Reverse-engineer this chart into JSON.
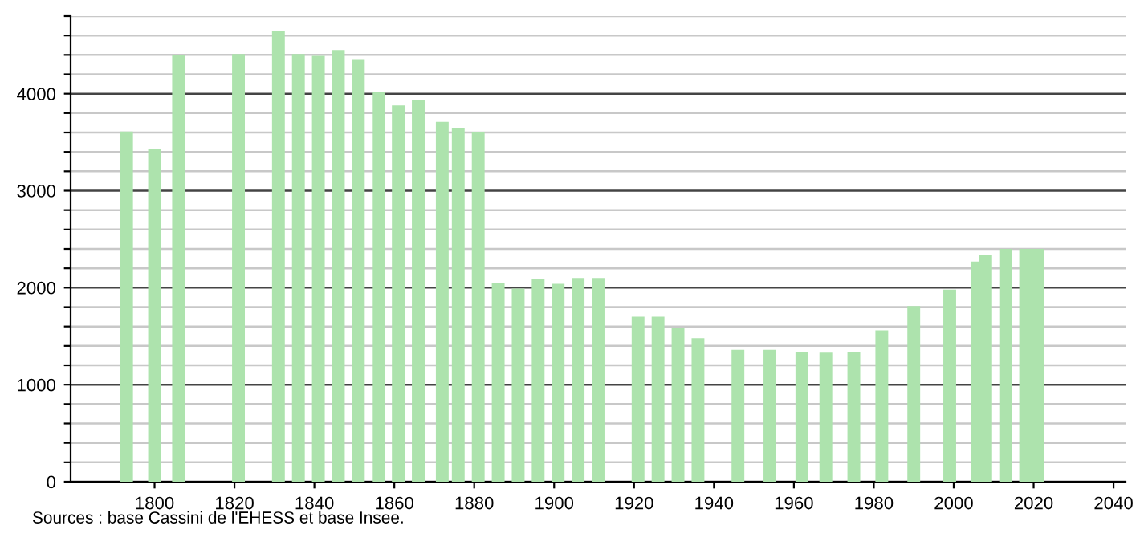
{
  "chart_data": {
    "type": "bar",
    "x": [
      1793,
      1800,
      1806,
      1821,
      1831,
      1836,
      1841,
      1846,
      1851,
      1856,
      1861,
      1866,
      1872,
      1876,
      1881,
      1886,
      1891,
      1896,
      1901,
      1906,
      1911,
      1921,
      1926,
      1931,
      1936,
      1946,
      1954,
      1962,
      1968,
      1975,
      1982,
      1990,
      1999,
      2006,
      2008,
      2013,
      2018,
      2021
    ],
    "series": [
      {
        "color": "#ade3ad",
        "values": [
          3610,
          3430,
          4400,
          4410,
          4650,
          4410,
          4390,
          4450,
          4350,
          4020,
          3880,
          3940,
          3710,
          3650,
          3600,
          2050,
          1990,
          2090,
          2040,
          2100,
          2100,
          1700,
          1700,
          1590,
          1480,
          1360,
          1360,
          1340,
          1330,
          1340,
          1560,
          1810,
          1980,
          2270,
          2340,
          2400,
          2400,
          2400
        ]
      }
    ],
    "xlim": [
      1779,
      2043
    ],
    "xticks": [
      1800,
      1820,
      1840,
      1860,
      1880,
      1900,
      1920,
      1940,
      1960,
      1980,
      2000,
      2020,
      2040
    ],
    "ylim": [
      0,
      4800
    ],
    "yticks": [
      0,
      {
        "value": 200,
        "label": null
      },
      {
        "value": 400,
        "label": null
      },
      {
        "value": 600,
        "label": null
      },
      {
        "value": 800,
        "label": null
      },
      1000,
      {
        "value": 1200,
        "label": null
      },
      {
        "value": 1400,
        "label": null
      },
      {
        "value": 1600,
        "label": null
      },
      {
        "value": 1800,
        "label": null
      },
      2000,
      {
        "value": 2200,
        "label": null
      },
      {
        "value": 2400,
        "label": null
      },
      {
        "value": 2600,
        "label": null
      },
      {
        "value": 2800,
        "label": null
      },
      3000,
      {
        "value": 3200,
        "label": null
      },
      {
        "value": 3400,
        "label": null
      },
      {
        "value": 3600,
        "label": null
      },
      {
        "value": 3800,
        "label": null
      },
      4000,
      {
        "value": 4200,
        "label": null
      },
      {
        "value": 4400,
        "label": null
      },
      {
        "value": 4600,
        "label": null
      },
      {
        "value": 4800,
        "label": null
      }
    ],
    "grid": "y",
    "annotations": [
      "Sources : base Cassini de l'EHESS et base Insee."
    ]
  }
}
